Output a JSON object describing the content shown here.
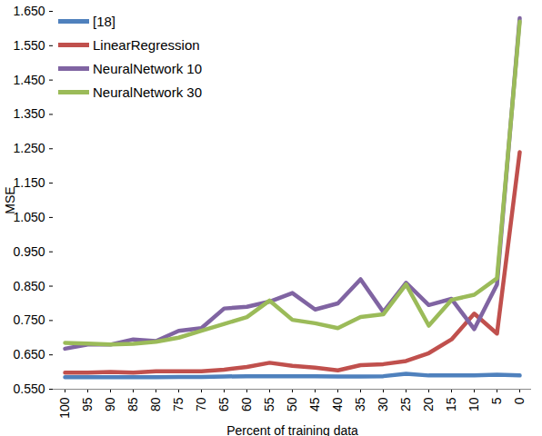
{
  "chart_data": {
    "type": "line",
    "x_label": "Percent of training data",
    "y_label": "MSE",
    "categories": [
      "100",
      "95",
      "90",
      "85",
      "80",
      "75",
      "70",
      "65",
      "60",
      "55",
      "50",
      "45",
      "40",
      "35",
      "30",
      "25",
      "20",
      "15",
      "10",
      "5",
      "0"
    ],
    "series": [
      {
        "name": "[18]",
        "color": "#4f81bd",
        "values": [
          0.585,
          0.585,
          0.585,
          0.585,
          0.585,
          0.586,
          0.586,
          0.587,
          0.588,
          0.588,
          0.588,
          0.588,
          0.587,
          0.587,
          0.588,
          0.595,
          0.59,
          0.59,
          0.59,
          0.592,
          0.59
        ]
      },
      {
        "name": "LinearRegression",
        "color": "#c0504d",
        "values": [
          0.598,
          0.598,
          0.6,
          0.598,
          0.602,
          0.602,
          0.602,
          0.607,
          0.615,
          0.627,
          0.618,
          0.613,
          0.605,
          0.62,
          0.623,
          0.632,
          0.655,
          0.695,
          0.77,
          0.712,
          1.24
        ]
      },
      {
        "name": "NeuralNetwork 10",
        "color": "#8064a2",
        "values": [
          0.668,
          0.68,
          0.68,
          0.695,
          0.69,
          0.72,
          0.728,
          0.785,
          0.79,
          0.805,
          0.83,
          0.782,
          0.8,
          0.87,
          0.775,
          0.86,
          0.795,
          0.813,
          0.725,
          0.855,
          1.63
        ]
      },
      {
        "name": "NeuralNetwork 30",
        "color": "#9bbb59",
        "values": [
          0.685,
          0.683,
          0.68,
          0.682,
          0.688,
          0.7,
          0.72,
          0.74,
          0.76,
          0.808,
          0.752,
          0.742,
          0.728,
          0.76,
          0.768,
          0.855,
          0.735,
          0.81,
          0.825,
          0.873,
          1.62
        ]
      }
    ],
    "ylim": [
      0.55,
      1.65
    ],
    "yticks": [
      {
        "value": 0.55,
        "label": "0.550"
      },
      {
        "value": 0.65,
        "label": "0.650"
      },
      {
        "value": 0.75,
        "label": "0.750"
      },
      {
        "value": 0.85,
        "label": "0.850"
      },
      {
        "value": 0.95,
        "label": "0.950"
      },
      {
        "value": 1.05,
        "label": "1.050"
      },
      {
        "value": 1.15,
        "label": "1.150"
      },
      {
        "value": 1.25,
        "label": "1.250"
      },
      {
        "value": 1.35,
        "label": "1.350"
      },
      {
        "value": 1.45,
        "label": "1.450"
      },
      {
        "value": 1.55,
        "label": "1.550"
      },
      {
        "value": 1.65,
        "label": "1.650"
      }
    ],
    "grid": false,
    "legend": "top-left"
  }
}
